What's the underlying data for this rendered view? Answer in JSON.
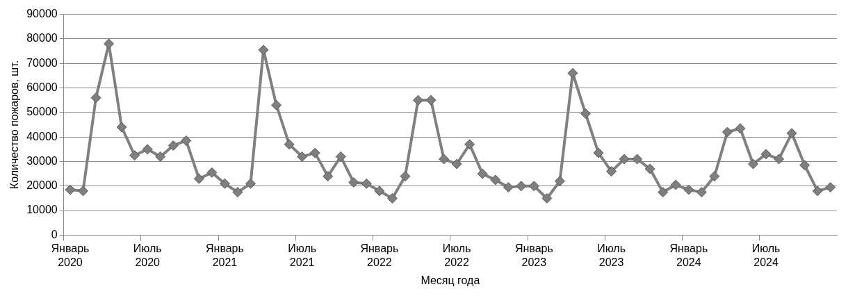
{
  "chart_data": {
    "type": "line",
    "xlabel": "Месяц года",
    "ylabel": "Количество пожаров, шт.",
    "categories": [
      "Январь 2020",
      null,
      null,
      null,
      null,
      null,
      "Июль 2020",
      null,
      null,
      null,
      null,
      null,
      "Январь 2021",
      null,
      null,
      null,
      null,
      null,
      "Июль 2021",
      null,
      null,
      null,
      null,
      null,
      "Январь 2022",
      null,
      null,
      null,
      null,
      null,
      "Июль 2022",
      null,
      null,
      null,
      null,
      null,
      "Январь 2023",
      null,
      null,
      null,
      null,
      null,
      "Июль 2023",
      null,
      null,
      null,
      null,
      null,
      "Январь 2024",
      null,
      null,
      null,
      null,
      null,
      "Июль 2024",
      null,
      null,
      null,
      null,
      null
    ],
    "series": [
      {
        "color": "#808080",
        "values": [
          18500,
          18000,
          56000,
          78000,
          44000,
          32500,
          35000,
          32000,
          36500,
          38500,
          23000,
          25500,
          21000,
          17500,
          21000,
          75500,
          53000,
          37000,
          32000,
          33500,
          24000,
          32000,
          21500,
          21000,
          18000,
          15000,
          24000,
          55000,
          55000,
          31000,
          29000,
          37000,
          25000,
          22500,
          19500,
          20000,
          20000,
          15000,
          22000,
          66000,
          49500,
          33500,
          26000,
          31000,
          31000,
          27000,
          17500,
          20500,
          18500,
          17500,
          24000,
          42000,
          43500,
          29000,
          33000,
          31000,
          41500,
          28500,
          18000,
          19500
        ]
      }
    ],
    "ylim": [
      0,
      90000
    ],
    "yticks": [
      0,
      10000,
      20000,
      30000,
      40000,
      50000,
      60000,
      70000,
      80000,
      90000
    ],
    "grid": "y",
    "legend": false,
    "marker": "diamond",
    "line_style": "solid"
  }
}
